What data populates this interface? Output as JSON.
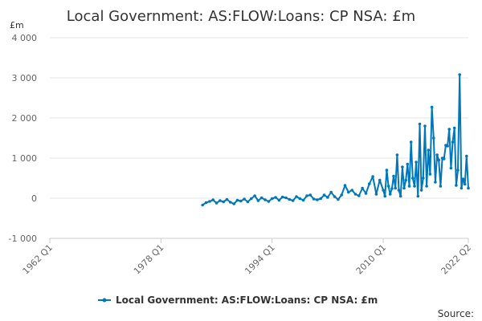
{
  "title": "Local Government: AS:FLOW:Loans: CP NSA: £m",
  "source_label": "Source:",
  "chart_data": {
    "type": "line",
    "title": "Local Government: AS:FLOW:Loans: CP NSA: £m",
    "ylabel": "£m",
    "xlabel": "",
    "ylim": [
      -1000,
      4000
    ],
    "y_ticks": [
      -1000,
      0,
      1000,
      2000,
      3000,
      4000
    ],
    "y_tick_labels": [
      "-1 000",
      "0",
      "1 000",
      "2 000",
      "3 000",
      "4 000"
    ],
    "xlim": [
      "1962 Q1",
      "2022 Q2"
    ],
    "x_ticks": [
      "1962 Q1",
      "1978 Q1",
      "1994 Q1",
      "2010 Q1",
      "2022 Q2"
    ],
    "grid": "horizontal",
    "legend_position": "bottom",
    "color": "#0077bb",
    "series": [
      {
        "name": "Local Government: AS:FLOW:Loans: CP NSA: £m",
        "x": [
          "1984 Q1",
          "1984 Q3",
          "1985 Q1",
          "1985 Q3",
          "1986 Q1",
          "1986 Q3",
          "1987 Q1",
          "1987 Q3",
          "1988 Q1",
          "1988 Q3",
          "1989 Q1",
          "1989 Q3",
          "1990 Q1",
          "1990 Q3",
          "1991 Q1",
          "1991 Q3",
          "1992 Q1",
          "1992 Q3",
          "1993 Q1",
          "1993 Q3",
          "1994 Q1",
          "1994 Q3",
          "1995 Q1",
          "1995 Q3",
          "1996 Q1",
          "1996 Q3",
          "1997 Q1",
          "1997 Q3",
          "1998 Q1",
          "1998 Q3",
          "1999 Q1",
          "1999 Q3",
          "2000 Q1",
          "2000 Q3",
          "2001 Q1",
          "2001 Q3",
          "2002 Q1",
          "2002 Q3",
          "2003 Q1",
          "2003 Q3",
          "2004 Q1",
          "2004 Q3",
          "2005 Q1",
          "2005 Q3",
          "2006 Q1",
          "2006 Q3",
          "2007 Q1",
          "2007 Q3",
          "2008 Q1",
          "2008 Q3",
          "2009 Q1",
          "2009 Q3",
          "2010 Q1",
          "2010 Q2",
          "2010 Q3",
          "2010 Q4",
          "2011 Q1",
          "2011 Q2",
          "2011 Q3",
          "2011 Q4",
          "2012 Q1",
          "2012 Q2",
          "2012 Q3",
          "2012 Q4",
          "2013 Q1",
          "2013 Q2",
          "2013 Q3",
          "2013 Q4",
          "2014 Q1",
          "2014 Q2",
          "2014 Q3",
          "2014 Q4",
          "2015 Q1",
          "2015 Q2",
          "2015 Q3",
          "2015 Q4",
          "2016 Q1",
          "2016 Q2",
          "2016 Q3",
          "2016 Q4",
          "2017 Q1",
          "2017 Q2",
          "2017 Q3",
          "2017 Q4",
          "2018 Q1",
          "2018 Q2",
          "2018 Q3",
          "2018 Q4",
          "2019 Q1",
          "2019 Q2",
          "2019 Q3",
          "2019 Q4",
          "2020 Q1",
          "2020 Q2",
          "2020 Q3",
          "2020 Q4",
          "2021 Q1",
          "2021 Q2",
          "2021 Q3",
          "2021 Q4",
          "2022 Q1",
          "2022 Q2"
        ],
        "values": [
          -170,
          -110,
          -80,
          -40,
          -120,
          -60,
          -90,
          -30,
          -100,
          -140,
          -50,
          -70,
          -20,
          -90,
          -10,
          60,
          -60,
          10,
          -40,
          -80,
          -10,
          20,
          -50,
          30,
          10,
          -30,
          -60,
          40,
          -10,
          -50,
          60,
          80,
          -20,
          -40,
          -10,
          80,
          20,
          150,
          40,
          -30,
          80,
          320,
          150,
          200,
          100,
          60,
          250,
          120,
          360,
          540,
          100,
          450,
          200,
          50,
          700,
          300,
          100,
          240,
          550,
          250,
          1080,
          200,
          50,
          780,
          250,
          450,
          850,
          300,
          1400,
          500,
          300,
          900,
          50,
          1850,
          200,
          500,
          1800,
          300,
          1200,
          600,
          2270,
          1500,
          400,
          1080,
          950,
          300,
          1000,
          980,
          1320,
          1300,
          1720,
          750,
          1400,
          1750,
          320,
          700,
          3080,
          250,
          480,
          350,
          1050,
          250
        ]
      }
    ]
  }
}
